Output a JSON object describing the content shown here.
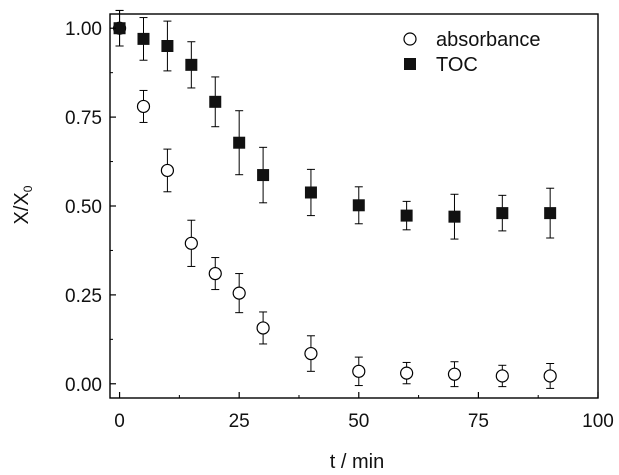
{
  "chart_data": {
    "type": "scatter",
    "xlabel": "t / min",
    "ylabel_main": "X/X",
    "ylabel_sub": "0",
    "xlim": [
      -2,
      100
    ],
    "ylim": [
      -0.04,
      1.04
    ],
    "xticks": [
      0,
      25,
      50,
      75,
      100
    ],
    "yticks": [
      0.0,
      0.25,
      0.5,
      0.75,
      1.0
    ],
    "xtick_labels": [
      "0",
      "25",
      "50",
      "75",
      "100"
    ],
    "ytick_labels": [
      "0.00",
      "0.25",
      "0.50",
      "0.75",
      "1.00"
    ],
    "grid": false,
    "legend_position": "top-right",
    "series": [
      {
        "name": "absorbance",
        "marker": "open-circle",
        "x": [
          0,
          5,
          10,
          15,
          20,
          25,
          30,
          40,
          50,
          60,
          70,
          80,
          90
        ],
        "y": [
          1.0,
          0.78,
          0.6,
          0.395,
          0.31,
          0.255,
          0.157,
          0.085,
          0.035,
          0.03,
          0.027,
          0.022,
          0.022
        ],
        "err": [
          0.05,
          0.045,
          0.06,
          0.065,
          0.045,
          0.055,
          0.045,
          0.05,
          0.04,
          0.03,
          0.035,
          0.03,
          0.035
        ]
      },
      {
        "name": "TOC",
        "marker": "filled-square",
        "x": [
          0,
          5,
          10,
          15,
          20,
          25,
          30,
          40,
          50,
          60,
          70,
          80,
          90
        ],
        "y": [
          1.0,
          0.97,
          0.95,
          0.897,
          0.793,
          0.678,
          0.587,
          0.538,
          0.502,
          0.473,
          0.47,
          0.48,
          0.48
        ],
        "err": [
          0.05,
          0.06,
          0.07,
          0.065,
          0.07,
          0.09,
          0.078,
          0.065,
          0.052,
          0.04,
          0.063,
          0.05,
          0.07
        ]
      }
    ]
  }
}
